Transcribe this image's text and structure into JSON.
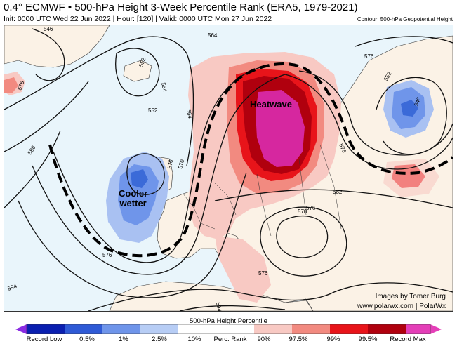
{
  "header": {
    "title": "0.4° ECMWF • 500-hPa Height 3-Week Percentile Rank (ERA5, 1979-2021)",
    "subtitle": "Init: 0000 UTC Wed 22 Jun 2022 | Hour: [120] | Valid: 0000 UTC Mon 27 Jun 2022",
    "contour_note": "Contour: 500-hPa Geopotential Height"
  },
  "map": {
    "annotations": {
      "heatwave": "Heatwave",
      "cooler_line1": "Cooler",
      "cooler_line2": "wetter"
    },
    "contour_labels": [
      "546",
      "552",
      "564",
      "564",
      "552",
      "576",
      "564",
      "576",
      "588",
      "552",
      "546",
      "570",
      "570",
      "576",
      "576",
      "582",
      "576",
      "576",
      "594",
      "594",
      "570"
    ],
    "credit_line1": "Images by Tomer Burg",
    "credit_line2": "www.polarwx.com | PolarWx"
  },
  "legend": {
    "title": "500-hPa Height Percentile",
    "ticks": [
      "Record Low",
      "0.5%",
      "1%",
      "2.5%",
      "10%",
      "Perc. Rank",
      "90%",
      "97.5%",
      "99%",
      "99.5%",
      "Record Max"
    ],
    "colors": [
      "#8a2be2",
      "#0a1fb0",
      "#2f5ad6",
      "#6f95ea",
      "#b7cdf5",
      "#ffffff",
      "#f8c9c3",
      "#f28a80",
      "#e8141a",
      "#b0000e",
      "#e43fb8"
    ]
  },
  "colors": {
    "ocean": "#e9f5fb",
    "land": "#fbf2e6",
    "warm_light": "#f8c9c3",
    "warm_mid": "#f28a80",
    "warm_strong": "#e8141a",
    "warm_deep": "#b0000e",
    "warm_max": "#d6279f",
    "cool_light": "#a9c1f2",
    "cool_mid": "#6f95ea",
    "cool_strong": "#3b6ad8"
  }
}
